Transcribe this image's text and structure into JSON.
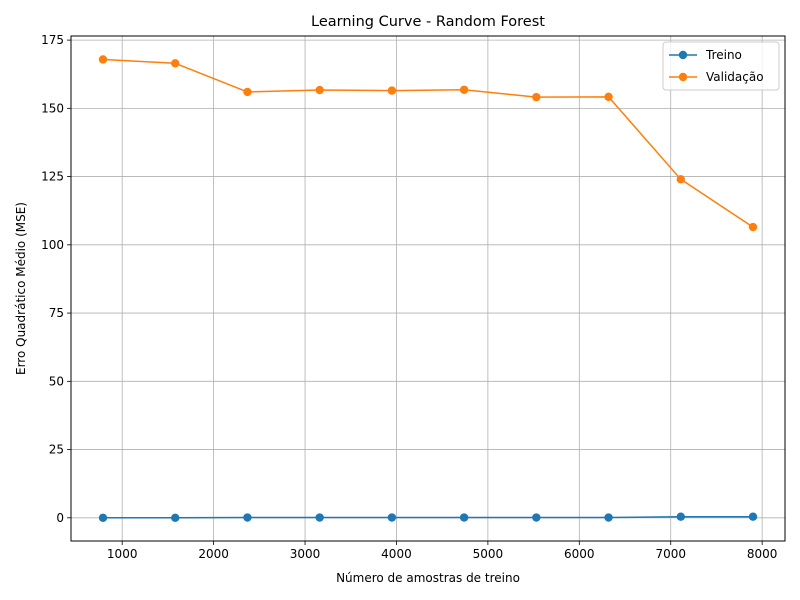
{
  "chart_data": {
    "type": "line",
    "title": "Learning Curve - Random Forest",
    "xlabel": "Número de amostras de treino",
    "ylabel": "Erro Quadrático Médio (MSE)",
    "xlim": [
      440,
      8250
    ],
    "ylim": [
      -8.5,
      176.5
    ],
    "xticks": [
      1000,
      2000,
      3000,
      4000,
      5000,
      6000,
      7000,
      8000
    ],
    "yticks": [
      0,
      25,
      50,
      75,
      100,
      125,
      150,
      175
    ],
    "grid": true,
    "legend_position": "top-right",
    "x": [
      790,
      1580,
      2370,
      3160,
      3950,
      4740,
      5530,
      6320,
      7110,
      7900
    ],
    "series": [
      {
        "name": "Treino",
        "color": "#1f77b4",
        "values": [
          0.0,
          0.0,
          0.1,
          0.1,
          0.1,
          0.1,
          0.1,
          0.1,
          0.4,
          0.4
        ]
      },
      {
        "name": "Validação",
        "color": "#ff7f0e",
        "values": [
          167.9,
          166.5,
          156.0,
          156.7,
          156.5,
          156.8,
          154.1,
          154.2,
          124.0,
          106.5
        ]
      }
    ]
  }
}
